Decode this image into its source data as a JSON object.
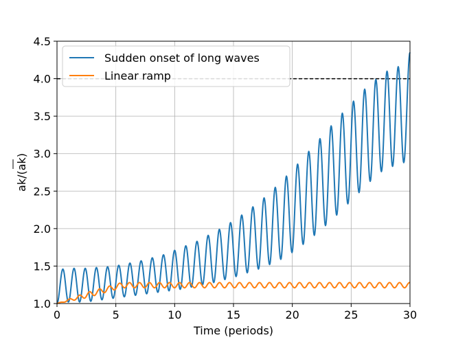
{
  "chart_data": {
    "type": "line",
    "title": "",
    "xlabel": "Time (periods)",
    "ylabel": "ak/(ak)",
    "xlim": [
      0,
      30
    ],
    "ylim": [
      1.0,
      4.5
    ],
    "x_ticks": [
      0,
      5,
      10,
      15,
      20,
      25,
      30
    ],
    "x_tick_labels": [
      "0",
      "5",
      "10",
      "15",
      "20",
      "25",
      "30"
    ],
    "y_ticks": [
      1.0,
      1.5,
      2.0,
      2.5,
      3.0,
      3.5,
      4.0,
      4.5
    ],
    "y_tick_labels": [
      "1.0",
      "1.5",
      "2.0",
      "2.5",
      "3.0",
      "3.5",
      "4.0",
      "4.5"
    ],
    "grid": true,
    "legend_position": "top-left",
    "reference_line": {
      "y": 4.0,
      "style": "dashed",
      "color": "#000000"
    },
    "series": [
      {
        "name": "Sudden onset of long waves",
        "color": "#1f77b4",
        "period": 0.95,
        "peaks": [
          {
            "x": 0.5,
            "y": 1.46
          },
          {
            "x": 1.45,
            "y": 1.47
          },
          {
            "x": 2.4,
            "y": 1.47
          },
          {
            "x": 3.35,
            "y": 1.48
          },
          {
            "x": 4.3,
            "y": 1.49
          },
          {
            "x": 5.25,
            "y": 1.51
          },
          {
            "x": 6.2,
            "y": 1.54
          },
          {
            "x": 7.15,
            "y": 1.57
          },
          {
            "x": 8.1,
            "y": 1.61
          },
          {
            "x": 9.05,
            "y": 1.65
          },
          {
            "x": 10.0,
            "y": 1.71
          },
          {
            "x": 10.95,
            "y": 1.77
          },
          {
            "x": 11.9,
            "y": 1.83
          },
          {
            "x": 12.85,
            "y": 1.91
          },
          {
            "x": 13.8,
            "y": 1.99
          },
          {
            "x": 14.75,
            "y": 2.08
          },
          {
            "x": 15.7,
            "y": 2.18
          },
          {
            "x": 16.65,
            "y": 2.29
          },
          {
            "x": 17.6,
            "y": 2.41
          },
          {
            "x": 18.55,
            "y": 2.55
          },
          {
            "x": 19.5,
            "y": 2.7
          },
          {
            "x": 20.45,
            "y": 2.86
          },
          {
            "x": 21.4,
            "y": 3.03
          },
          {
            "x": 22.35,
            "y": 3.2
          },
          {
            "x": 23.3,
            "y": 3.37
          },
          {
            "x": 24.25,
            "y": 3.54
          },
          {
            "x": 25.2,
            "y": 3.7
          },
          {
            "x": 26.15,
            "y": 3.86
          },
          {
            "x": 27.1,
            "y": 3.99
          },
          {
            "x": 28.05,
            "y": 4.1
          },
          {
            "x": 29.0,
            "y": 4.16
          }
        ],
        "troughs": [
          {
            "x": 0.0,
            "y": 1.0
          },
          {
            "x": 0.97,
            "y": 1.02
          },
          {
            "x": 1.92,
            "y": 1.02
          },
          {
            "x": 2.87,
            "y": 1.03
          },
          {
            "x": 3.82,
            "y": 1.05
          },
          {
            "x": 4.77,
            "y": 1.07
          },
          {
            "x": 5.72,
            "y": 1.09
          },
          {
            "x": 6.67,
            "y": 1.11
          },
          {
            "x": 7.62,
            "y": 1.13
          },
          {
            "x": 8.57,
            "y": 1.15
          },
          {
            "x": 9.52,
            "y": 1.17
          },
          {
            "x": 10.47,
            "y": 1.19
          },
          {
            "x": 11.42,
            "y": 1.22
          },
          {
            "x": 12.37,
            "y": 1.25
          },
          {
            "x": 13.32,
            "y": 1.28
          },
          {
            "x": 14.27,
            "y": 1.32
          },
          {
            "x": 15.22,
            "y": 1.36
          },
          {
            "x": 16.17,
            "y": 1.41
          },
          {
            "x": 17.12,
            "y": 1.46
          },
          {
            "x": 18.07,
            "y": 1.52
          },
          {
            "x": 19.02,
            "y": 1.59
          },
          {
            "x": 19.97,
            "y": 1.68
          },
          {
            "x": 20.92,
            "y": 1.79
          },
          {
            "x": 21.87,
            "y": 1.91
          },
          {
            "x": 22.82,
            "y": 2.04
          },
          {
            "x": 23.77,
            "y": 2.18
          },
          {
            "x": 24.72,
            "y": 2.33
          },
          {
            "x": 25.67,
            "y": 2.48
          },
          {
            "x": 26.62,
            "y": 2.63
          },
          {
            "x": 27.57,
            "y": 2.76
          },
          {
            "x": 28.52,
            "y": 2.83
          },
          {
            "x": 29.47,
            "y": 2.88
          }
        ],
        "end_point": {
          "x": 30.0,
          "y": 4.35
        }
      },
      {
        "name": "Linear ramp",
        "color": "#ff7f0e",
        "ramp_end_x": 5.5,
        "mean_start": 1.0,
        "mean_plateau": 1.245,
        "oscillation_amplitude": 0.035,
        "oscillation_period": 0.85
      }
    ]
  }
}
